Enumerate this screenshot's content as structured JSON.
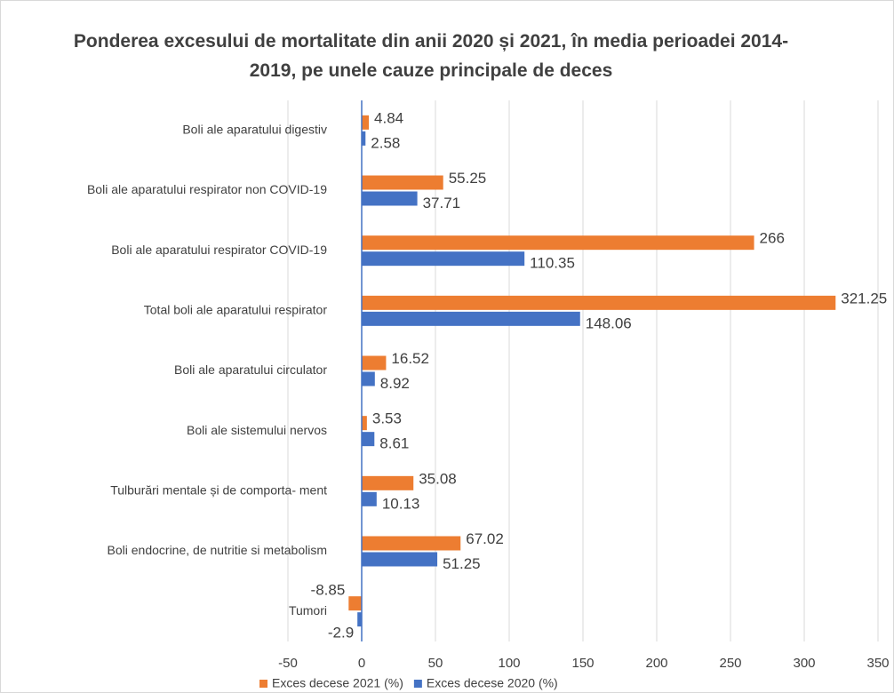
{
  "chart_data": {
    "type": "bar",
    "orientation": "horizontal",
    "title": "Ponderea excesului de mortalitate din anii 2020 și 2021, în media perioadei 2014-2019, pe unele cauze principale de deces",
    "categories": [
      "Boli ale aparatului digestiv",
      "Boli ale aparatului respirator non COVID-19",
      "Boli ale aparatului respirator COVID-19",
      "Total boli ale aparatului respirator",
      "Boli ale aparatului circulator",
      "Boli ale sistemului nervos",
      "Tulburări mentale și de comporta- ment",
      "Boli endocrine, de nutritie si metabolism",
      "Tumori"
    ],
    "series": [
      {
        "name": "Exces decese 2021 (%)",
        "color": "#ed7d31",
        "values": [
          4.84,
          55.25,
          266,
          321.25,
          16.52,
          3.53,
          35.08,
          67.02,
          -8.85
        ]
      },
      {
        "name": "Exces decese 2020 (%)",
        "color": "#4472c4",
        "values": [
          2.58,
          37.71,
          110.35,
          148.06,
          8.92,
          8.61,
          10.13,
          51.25,
          -2.9
        ]
      }
    ],
    "xlim": [
      -50,
      350
    ],
    "xticks": [
      -50,
      0,
      50,
      100,
      150,
      200,
      250,
      300,
      350
    ],
    "grid": true,
    "legend": "bottom"
  }
}
